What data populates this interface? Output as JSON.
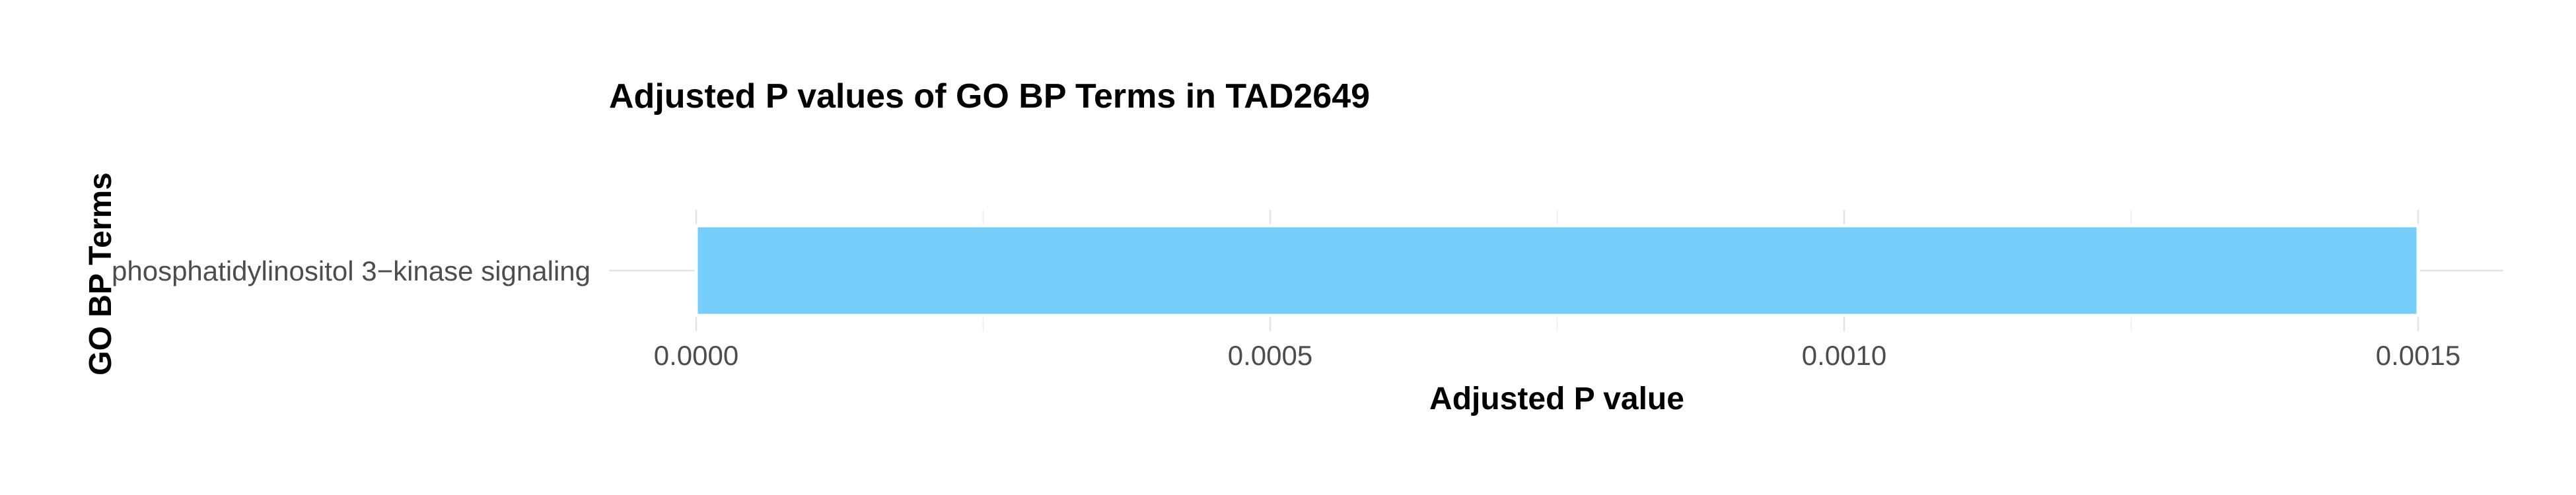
{
  "chart_data": {
    "type": "bar",
    "orientation": "horizontal",
    "title": "Adjusted P values of GO BP Terms in TAD2649",
    "xlabel": "Adjusted P value",
    "ylabel": "GO BP Terms",
    "categories": [
      "phosphatidylinositol 3−kinase signaling"
    ],
    "values": [
      0.0015
    ],
    "xlim": [
      0,
      0.00158
    ],
    "x_ticks": [
      0,
      0.0005,
      0.001,
      0.0015
    ],
    "x_tick_labels": [
      "0.0000",
      "0.0005",
      "0.0010",
      "0.0015"
    ],
    "minor_ticks": [
      0.00025,
      0.00075,
      0.00125
    ],
    "grid": true,
    "legend": "none",
    "bar_color": "#76cffb",
    "bar_border_color": "#ffffff"
  }
}
